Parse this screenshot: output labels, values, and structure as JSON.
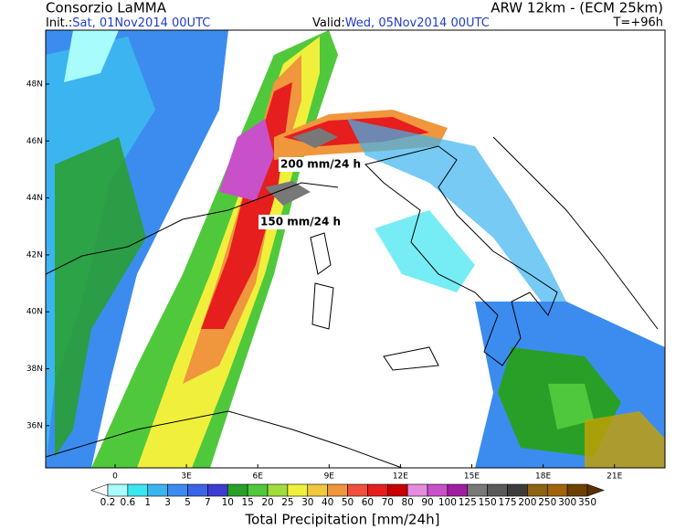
{
  "header": {
    "title": "Consorzio LaMMA",
    "model": "ARW 12km - (ECM 25km)",
    "init_label": "Init.:",
    "init_time": "Sat, 01Nov2014 00UTC",
    "valid_label": "Valid:",
    "valid_time": "Wed, 05Nov2014 00UTC",
    "lead_time": "T=+96h"
  },
  "map": {
    "lat_labels": [
      "48N",
      "46N",
      "44N",
      "42N",
      "40N",
      "38N",
      "36N"
    ],
    "lon_labels": [
      "0",
      "3E",
      "6E",
      "9E",
      "12E",
      "15E",
      "18E",
      "21E"
    ],
    "annotations": [
      "200 mm/24 h",
      "150 mm/24 h"
    ]
  },
  "legend": {
    "title": "Total Precipitation [mm/24h]",
    "labels": [
      "0.2",
      "0.6",
      "1",
      "3",
      "5",
      "7",
      "10",
      "15",
      "20",
      "25",
      "30",
      "40",
      "50",
      "60",
      "70",
      "80",
      "90",
      "100",
      "125",
      "150",
      "175",
      "200",
      "250",
      "300",
      "350"
    ],
    "colors": [
      "#ffffff",
      "#a8fcfc",
      "#3ce6f0",
      "#3cb4f0",
      "#3c8cf0",
      "#3c64e6",
      "#3c3cd2",
      "#28a028",
      "#50c83c",
      "#a0dc3c",
      "#f0f03c",
      "#f0c83c",
      "#f0963c",
      "#f0503c",
      "#e61e1e",
      "#c80000",
      "#e68cdc",
      "#c850c8",
      "#a01ea0",
      "#787878",
      "#5a5a5a",
      "#3c3c3c",
      "#8c6414",
      "#a0640a",
      "#6e4100",
      "#5a3000"
    ]
  }
}
